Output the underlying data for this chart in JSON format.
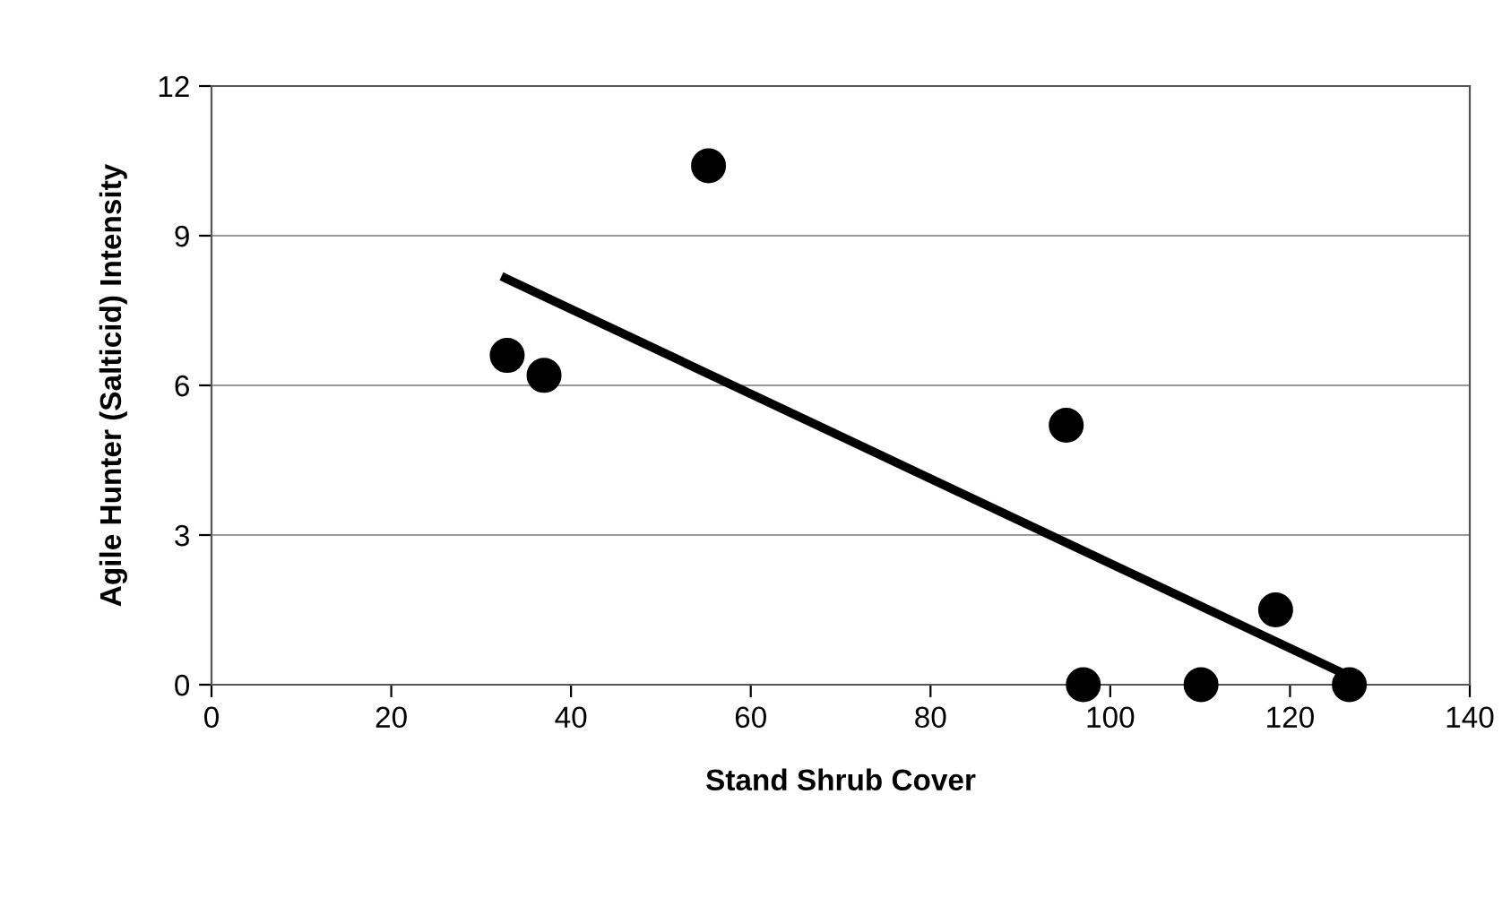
{
  "chart_data": {
    "type": "scatter",
    "xlabel": "Stand Shrub Cover",
    "ylabel": "Agile Hunter (Salticid) Intensity",
    "xlim": [
      0,
      140
    ],
    "xticks": [
      0,
      20,
      40,
      60,
      80,
      100,
      120,
      140
    ],
    "ylim": [
      0,
      12
    ],
    "yticks": [
      0,
      3,
      6,
      9,
      12
    ],
    "grid": "y",
    "series": [
      {
        "marker": "circle",
        "color": "#000000",
        "x": [
          32.9,
          37.0,
          55.3,
          95.1,
          97.0,
          110.1,
          118.4,
          126.6
        ],
        "values": [
          6.6,
          6.2,
          10.4,
          5.2,
          0,
          0,
          1.5,
          0
        ]
      },
      {
        "type": "line",
        "color": "#000000",
        "x": [
          32.7,
          126.6
        ],
        "values": [
          8.15,
          0.17
        ]
      }
    ]
  }
}
